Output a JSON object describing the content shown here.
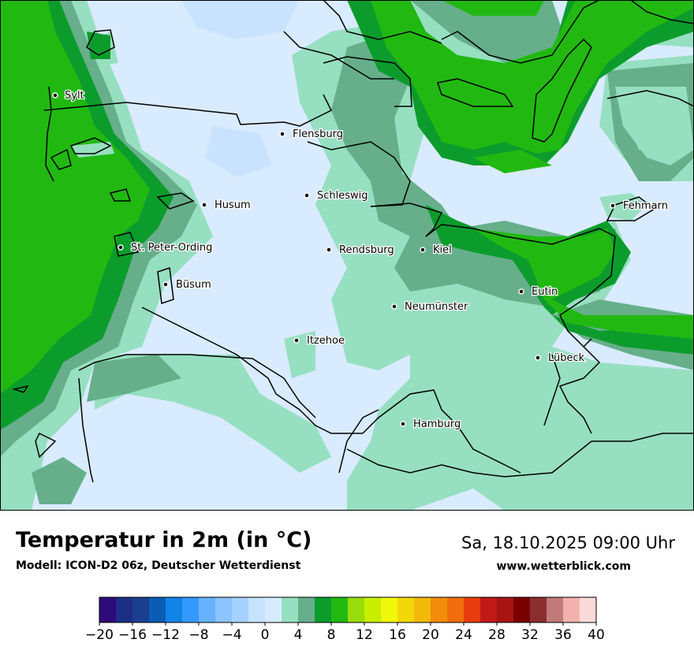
{
  "title": "Temperatur in 2m (in °C)",
  "model": "Modell: ICON-D2 06z, Deutscher Wetterdienst",
  "datetime": "Sa, 18.10.2025 09:00 Uhr",
  "website": "www.wetterblick.com",
  "cities": [
    {
      "name": "Sylt"
    },
    {
      "name": "Flensburg"
    },
    {
      "name": "Schleswig"
    },
    {
      "name": "Husum"
    },
    {
      "name": "Fehmarn"
    },
    {
      "name": "St. Peter-Ording"
    },
    {
      "name": "Rendsburg"
    },
    {
      "name": "Kiel"
    },
    {
      "name": "Büsum"
    },
    {
      "name": "Eutin"
    },
    {
      "name": "Neumünster"
    },
    {
      "name": "Itzehoe"
    },
    {
      "name": "Lübeck"
    },
    {
      "name": "Hamburg"
    }
  ],
  "legend": {
    "ticks": [
      "−20",
      "−16",
      "−12",
      "−8",
      "−4",
      "0",
      "4",
      "8",
      "12",
      "16",
      "20",
      "24",
      "28",
      "32",
      "36",
      "40"
    ],
    "colors": [
      "#2e0a7a",
      "#1c2f85",
      "#1b3f8f",
      "#0a5cb4",
      "#1184e8",
      "#3399ff",
      "#66b2ff",
      "#8cc4ff",
      "#a6d2ff",
      "#c6e2ff",
      "#d7ebff",
      "#97dfc1",
      "#66af8a",
      "#0c9c2c",
      "#21b911",
      "#99dc0c",
      "#c8ee00",
      "#f0f80a",
      "#f2d709",
      "#f2b90a",
      "#f28c0a",
      "#f26d0c",
      "#e83c0e",
      "#c01a17",
      "#a71414",
      "#7b0000",
      "#8b2e2e",
      "#c17979",
      "#f2b1ad",
      "#fcd9d9"
    ]
  },
  "colors": {
    "cold_land": "#d9ebff",
    "light_cyan": "#c9e3ff",
    "mint": "#97dfc1",
    "teal_green": "#66af8a",
    "dark_green": "#0c9c2c",
    "bright_green": "#21b911",
    "border": "#000000"
  }
}
